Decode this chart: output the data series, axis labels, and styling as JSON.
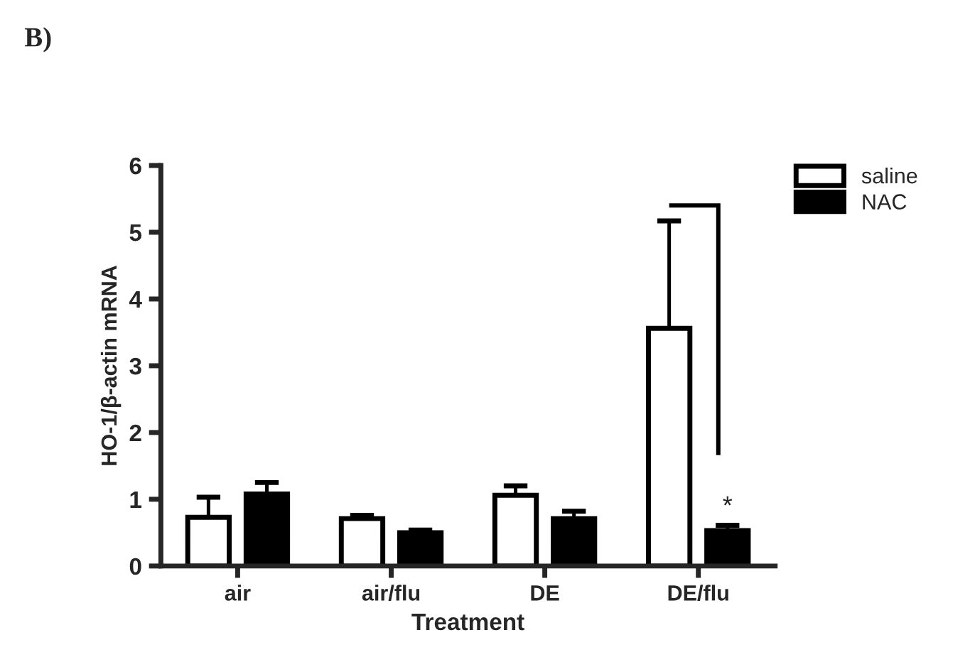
{
  "chart_data": {
    "type": "bar",
    "xlabel": "Treatment",
    "ylabel": "HO-1/β-actin mRNA",
    "categories": [
      "air",
      "air/flu",
      "DE",
      "DE/flu"
    ],
    "series": [
      {
        "name": "saline",
        "color": "#ffffff",
        "values": [
          0.73,
          0.71,
          1.06,
          3.56
        ],
        "errors": [
          0.3,
          0.05,
          0.14,
          1.61
        ]
      },
      {
        "name": "NAC",
        "color": "#000000",
        "values": [
          1.08,
          0.5,
          0.71,
          0.53
        ],
        "errors": [
          0.17,
          0.04,
          0.11,
          0.08
        ]
      }
    ],
    "ylim": [
      0,
      6
    ],
    "yticks": [
      0,
      1,
      2,
      3,
      4,
      5,
      6
    ],
    "grid": false,
    "legend": "top right",
    "annotations": [
      "B)",
      "*"
    ]
  }
}
